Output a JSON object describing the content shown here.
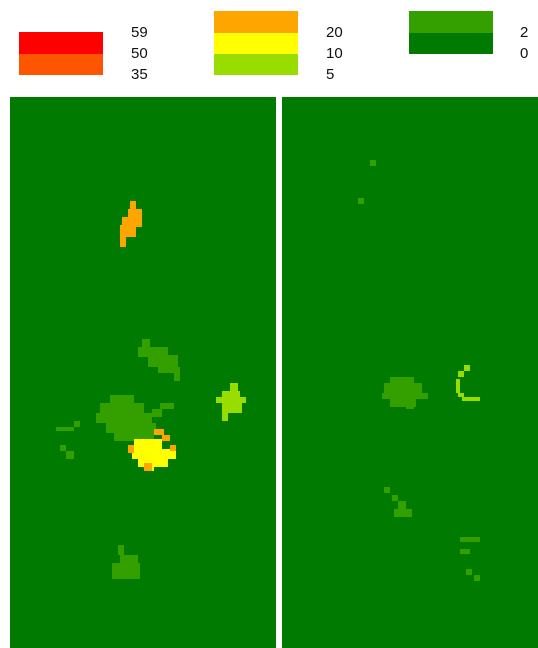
{
  "legend": {
    "groups": [
      {
        "name": "red-group",
        "colors": [
          "#ff0000",
          "#ff5500"
        ],
        "labels": [
          "59",
          "50",
          "35"
        ]
      },
      {
        "name": "yellow-group",
        "colors": [
          "#ffa500",
          "#ffff00",
          "#99dd00"
        ],
        "labels": [
          "20",
          "10",
          "5"
        ]
      },
      {
        "name": "green-group",
        "colors": [
          "#33a000",
          "#007a00"
        ],
        "labels": [
          "2",
          "0"
        ]
      }
    ]
  },
  "colors": {
    "background": "#007a00",
    "class_2": "#33a000",
    "class_5": "#99dd00",
    "class_10": "#ffff00",
    "class_20": "#ffa500",
    "separator": "#ffffff"
  },
  "maps": [
    {
      "name": "left-map"
    },
    {
      "name": "right-map"
    }
  ]
}
